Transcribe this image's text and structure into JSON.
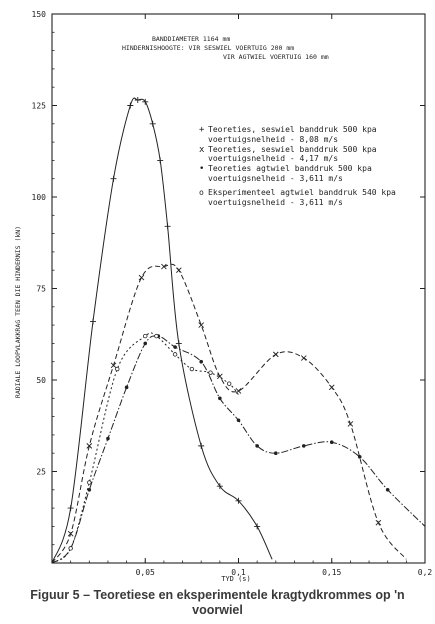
{
  "chart_data": {
    "type": "line",
    "title": "",
    "xlabel": "TYD (s)",
    "ylabel": "RADIALE LOOPVLAKKRAG TEEN DIE HINDERNIS (kN)",
    "xlim": [
      0,
      0.2
    ],
    "ylim": [
      0,
      150
    ],
    "x_ticks": [
      "0,05",
      "0,1",
      "0,15",
      "0,2"
    ],
    "y_ticks": [
      "25",
      "50",
      "75",
      "100",
      "125",
      "150"
    ],
    "grid": false,
    "legend_position": "top-right",
    "header_lines": [
      "BANDDIAMETER   1164 mm",
      "HINDERNISHOOGTE: VIR SESWIEL VOERTUIG  200 mm",
      "VIR AGTWIEL VOERTUIG  160 mm"
    ],
    "series": [
      {
        "marker": "+",
        "legend": [
          "Teoreties, seswiel banddruk 500 kpa",
          "voertuigsnelheid - 8,08 m/s"
        ],
        "x": [
          0,
          0.01,
          0.022,
          0.033,
          0.042,
          0.046,
          0.05,
          0.054,
          0.058,
          0.062,
          0.068,
          0.08,
          0.09,
          0.1,
          0.11,
          0.118
        ],
        "y": [
          0,
          15,
          66,
          105,
          125,
          126.5,
          126,
          120,
          110,
          92,
          60,
          32,
          21,
          17,
          10,
          1
        ]
      },
      {
        "marker": "x",
        "legend": [
          "Teoreties, seswiel banddruk 500 kpa",
          "voertuigsnelheid - 4,17 m/s"
        ],
        "x": [
          0,
          0.01,
          0.02,
          0.033,
          0.048,
          0.06,
          0.068,
          0.08,
          0.09,
          0.1,
          0.12,
          0.135,
          0.15,
          0.16,
          0.175,
          0.19
        ],
        "y": [
          0,
          8,
          32,
          54,
          78,
          81,
          80,
          65,
          51,
          47,
          57,
          56,
          48,
          38,
          11,
          1
        ]
      },
      {
        "marker": "•",
        "legend": [
          "Teoreties agtwiel banddruk 500 kpa",
          "voertuigsnelheid - 3,611 m/s"
        ],
        "x": [
          0,
          0.01,
          0.02,
          0.03,
          0.04,
          0.05,
          0.057,
          0.066,
          0.08,
          0.09,
          0.1,
          0.11,
          0.12,
          0.135,
          0.15,
          0.165,
          0.18,
          0.2
        ],
        "y": [
          0,
          4,
          20,
          34,
          48,
          60,
          62,
          59,
          55,
          45,
          39,
          32,
          30,
          32,
          33,
          29,
          20,
          10
        ]
      },
      {
        "marker": "o",
        "legend": [
          "Eksperimenteel agtwiel banddruk 540 kpa",
          "voertuigsnelheid - 3,611 m/s"
        ],
        "x": [
          0,
          0.01,
          0.02,
          0.035,
          0.05,
          0.056,
          0.066,
          0.075,
          0.085,
          0.095,
          0.1
        ],
        "y": [
          0,
          4,
          22,
          53,
          62,
          62,
          57,
          53,
          52,
          49,
          46
        ]
      }
    ]
  },
  "caption": {
    "line1": "Figuur 5 – Teoretiese en eksperimentele kragtydkrommes op 'n",
    "line2": "voorwiel"
  }
}
